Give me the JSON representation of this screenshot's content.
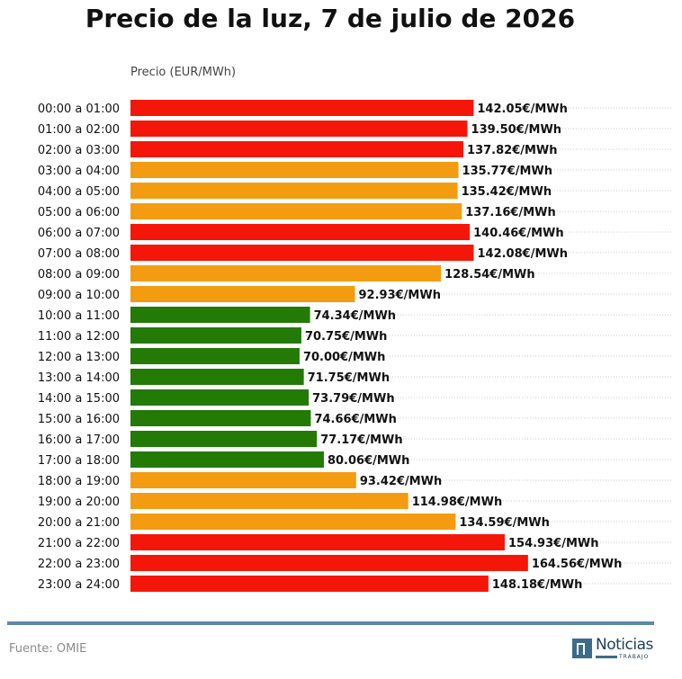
{
  "title": "Precio de la luz, 7 de julio de 2026",
  "source": "Fuente: OMIE",
  "logo": {
    "name": "Noticias",
    "sub": "TRABAJO"
  },
  "colors": {
    "high": "#f5160a",
    "mid": "#f39c12",
    "low": "#237a05"
  },
  "chart_data": {
    "type": "bar",
    "orientation": "horizontal",
    "ylabel": "Precio (EUR/MWh)",
    "xlim": [
      0,
      160
    ],
    "grid": "dotted horizontal",
    "value_suffix": "€/MWh",
    "categories": [
      "00:00 a 01:00",
      "01:00 a 02:00",
      "02:00 a 03:00",
      "03:00 a 04:00",
      "04:00 a 05:00",
      "05:00 a 06:00",
      "06:00 a 07:00",
      "07:00 a 08:00",
      "08:00 a 09:00",
      "09:00 a 10:00",
      "10:00 a 11:00",
      "11:00 a 12:00",
      "12:00 a 13:00",
      "13:00 a 14:00",
      "14:00 a 15:00",
      "15:00 a 16:00",
      "16:00 a 17:00",
      "17:00 a 18:00",
      "18:00 a 19:00",
      "19:00 a 20:00",
      "20:00 a 21:00",
      "21:00 a 22:00",
      "22:00 a 23:00",
      "23:00 a 24:00"
    ],
    "values": [
      142.05,
      139.5,
      137.82,
      135.77,
      135.42,
      137.16,
      140.46,
      142.08,
      128.54,
      92.93,
      74.34,
      70.75,
      70.0,
      71.75,
      73.79,
      74.66,
      77.17,
      80.06,
      93.42,
      114.98,
      134.59,
      154.93,
      164.56,
      148.18
    ],
    "labels": [
      "142.05€/MWh",
      "139.50€/MWh",
      "137.82€/MWh",
      "135.77€/MWh",
      "135.42€/MWh",
      "137.16€/MWh",
      "140.46€/MWh",
      "142.08€/MWh",
      "128.54€/MWh",
      "92.93€/MWh",
      "74.34€/MWh",
      "70.75€/MWh",
      "70.00€/MWh",
      "71.75€/MWh",
      "73.79€/MWh",
      "74.66€/MWh",
      "77.17€/MWh",
      "80.06€/MWh",
      "93.42€/MWh",
      "114.98€/MWh",
      "134.59€/MWh",
      "154.93€/MWh",
      "164.56€/MWh",
      "148.18€/MWh"
    ],
    "bar_colors": [
      "high",
      "high",
      "high",
      "mid",
      "mid",
      "mid",
      "high",
      "high",
      "mid",
      "mid",
      "low",
      "low",
      "low",
      "low",
      "low",
      "low",
      "low",
      "low",
      "mid",
      "mid",
      "mid",
      "high",
      "high",
      "high"
    ]
  }
}
